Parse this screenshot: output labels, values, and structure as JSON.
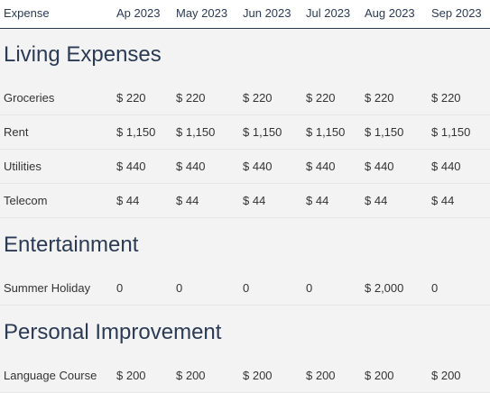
{
  "headers": [
    "Expense",
    "Ap 2023",
    "May 2023",
    "Jun 2023",
    "Jul 2023",
    "Aug 2023",
    "Sep 2023"
  ],
  "sections": [
    {
      "title": "Living Expenses",
      "rows": [
        {
          "label": "Groceries",
          "values": [
            "$ 220",
            "$ 220",
            "$ 220",
            "$ 220",
            "$ 220",
            "$ 220"
          ]
        },
        {
          "label": "Rent",
          "values": [
            "$ 1,150",
            "$ 1,150",
            "$ 1,150",
            "$ 1,150",
            "$ 1,150",
            "$ 1,150"
          ]
        },
        {
          "label": "Utilities",
          "values": [
            "$ 440",
            "$ 440",
            "$ 440",
            "$ 440",
            "$ 440",
            "$ 440"
          ]
        },
        {
          "label": "Telecom",
          "values": [
            "$ 44",
            "$ 44",
            "$ 44",
            "$ 44",
            "$ 44",
            "$ 44"
          ]
        }
      ]
    },
    {
      "title": "Entertainment",
      "rows": [
        {
          "label": "Summer Holiday",
          "values": [
            "0",
            "0",
            "0",
            "0",
            "$ 2,000",
            "0"
          ]
        }
      ]
    },
    {
      "title": "Personal Improvement",
      "rows": [
        {
          "label": "Language Course",
          "values": [
            "$ 200",
            "$ 200",
            "$ 200",
            "$ 200",
            "$ 200",
            "$ 200"
          ]
        }
      ]
    }
  ]
}
